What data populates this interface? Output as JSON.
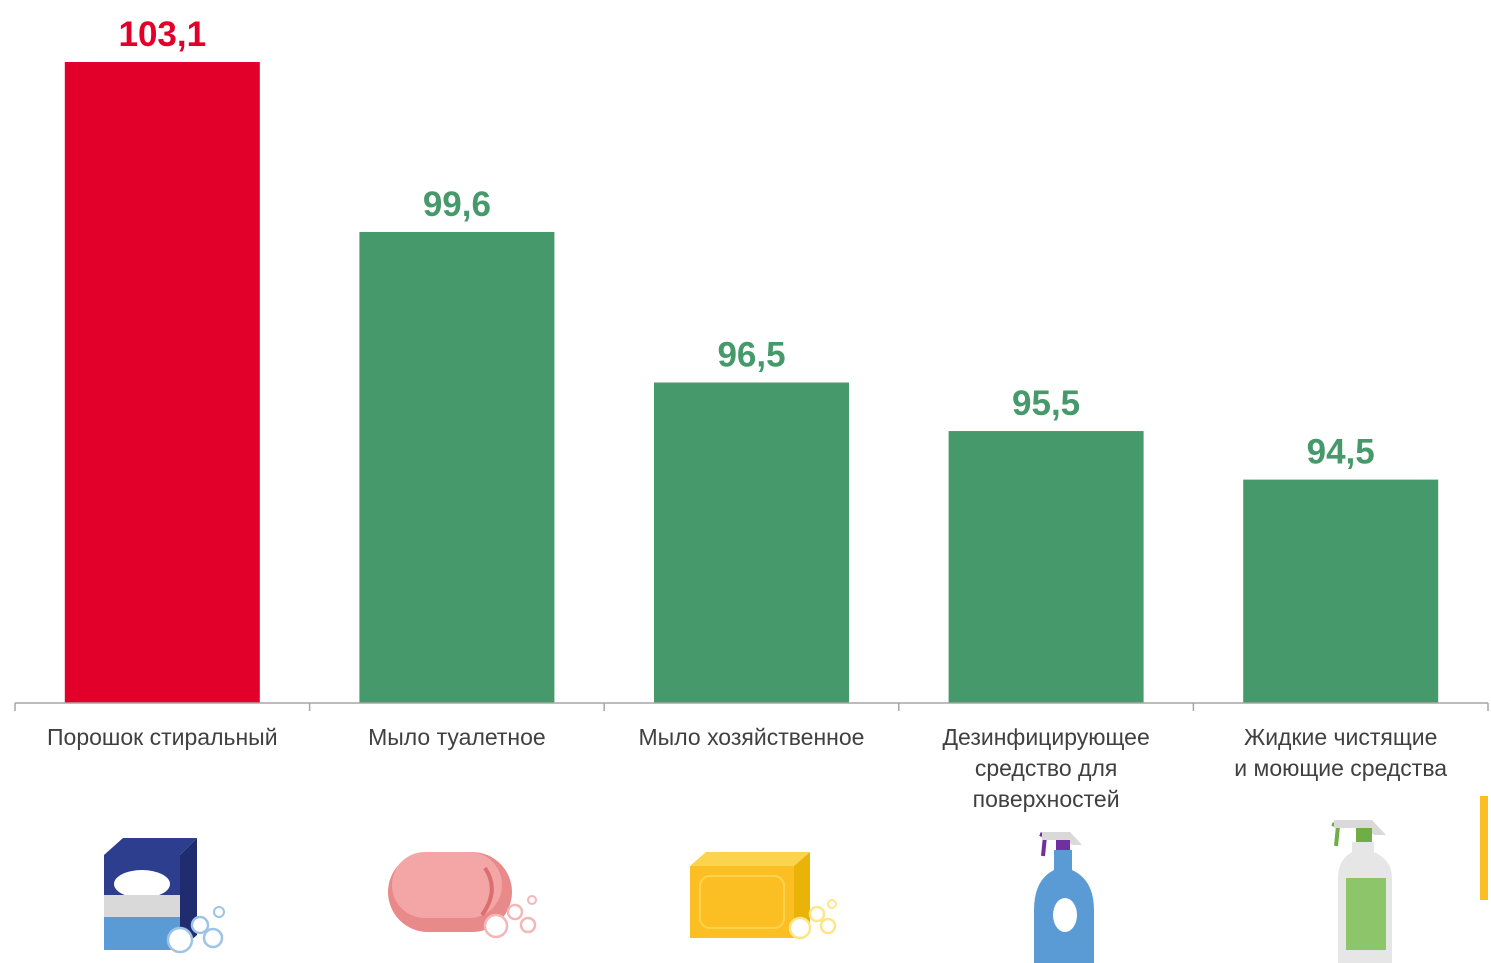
{
  "chart_data": {
    "type": "bar",
    "categories": [
      "Порошок стиральный",
      "Мыло туалетное",
      "Мыло хозяйственное",
      "Дезинфицирующее средство для поверхностей",
      "Жидкие чистящие и моющие средства"
    ],
    "category_lines": [
      [
        "Порошок стиральный"
      ],
      [
        "Мыло туалетное"
      ],
      [
        "Мыло хозяйственное"
      ],
      [
        "Дезинфицирующее",
        "средство для",
        "поверхностей"
      ],
      [
        "Жидкие чистящие",
        "и моющие средства"
      ]
    ],
    "values": [
      103.1,
      99.6,
      96.5,
      95.5,
      94.5
    ],
    "value_labels": [
      "103,1",
      "99,6",
      "96,5",
      "95,5",
      "94,5"
    ],
    "bar_colors": [
      "#e2002a",
      "#46996a",
      "#46996a",
      "#46996a",
      "#46996a"
    ],
    "ylim": [
      89.9,
      103.1
    ],
    "grid": false,
    "axis_color": "#a6a6a6",
    "label_color": "#404040",
    "icons": [
      "washing-powder-box-icon",
      "toilet-soap-icon",
      "laundry-soap-icon",
      "disinfectant-spray-bottle-icon",
      "cleaning-spray-bottle-icon"
    ]
  }
}
